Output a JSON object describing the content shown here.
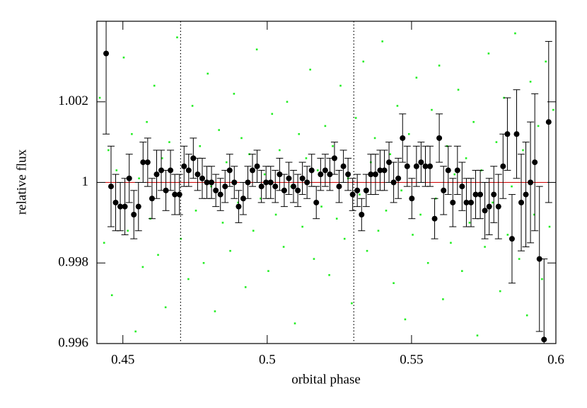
{
  "chart_data": {
    "type": "scatter",
    "xlabel": "orbital phase",
    "ylabel": "relative flux",
    "xlim": [
      0.441,
      0.6
    ],
    "ylim": [
      0.996,
      1.004
    ],
    "xticks": [
      0.45,
      0.5,
      0.55,
      0.6
    ],
    "yticks": [
      0.996,
      0.998,
      1,
      1.002
    ],
    "vlines": [
      0.47,
      0.53
    ],
    "vline_color": "#000000",
    "hline": 1,
    "hline_color": "#cc0000",
    "series": [
      {
        "color": "#22ee22",
        "x": [
          0.442,
          0.4435,
          0.445,
          0.4462,
          0.4478,
          0.449,
          0.4503,
          0.4517,
          0.4531,
          0.4544,
          0.4556,
          0.4569,
          0.4583,
          0.4595,
          0.4609,
          0.4622,
          0.4636,
          0.4648,
          0.4661,
          0.4675,
          0.4688,
          0.4701,
          0.4714,
          0.4727,
          0.4741,
          0.4753,
          0.4767,
          0.478,
          0.4794,
          0.4806,
          0.4819,
          0.4833,
          0.4846,
          0.4859,
          0.4872,
          0.4885,
          0.4899,
          0.4911,
          0.4925,
          0.4938,
          0.4952,
          0.4964,
          0.4977,
          0.4991,
          0.5004,
          0.5017,
          0.503,
          0.5043,
          0.5057,
          0.5069,
          0.5083,
          0.5096,
          0.511,
          0.5122,
          0.5135,
          0.5149,
          0.5162,
          0.5175,
          0.5188,
          0.5201,
          0.5215,
          0.5227,
          0.5241,
          0.5254,
          0.5268,
          0.528,
          0.5293,
          0.5307,
          0.532,
          0.5333,
          0.5346,
          0.5359,
          0.5373,
          0.5385,
          0.5399,
          0.5412,
          0.5426,
          0.5438,
          0.5451,
          0.5465,
          0.5478,
          0.5491,
          0.5504,
          0.5517,
          0.5531,
          0.5543,
          0.5557,
          0.557,
          0.5584,
          0.5596,
          0.5609,
          0.5623,
          0.5636,
          0.5649,
          0.5662,
          0.5675,
          0.5689,
          0.5701,
          0.5715,
          0.5728,
          0.5742,
          0.5754,
          0.5767,
          0.5781,
          0.5794,
          0.5807,
          0.582,
          0.5833,
          0.5847,
          0.5859,
          0.5873,
          0.5886,
          0.59,
          0.5912,
          0.5925,
          0.5939,
          0.5952,
          0.5965,
          0.5978,
          0.5991
        ],
        "values": [
          1.0021,
          0.9985,
          1.0008,
          0.9972,
          1.0003,
          0.9994,
          1.0031,
          0.9988,
          1.0012,
          0.9963,
          1.0001,
          0.9979,
          1.0015,
          0.9991,
          1.0024,
          0.9982,
          1.0006,
          0.9969,
          1.001,
          0.9997,
          1.0036,
          0.9986,
          1.0004,
          0.9976,
          1.0019,
          0.9993,
          1.0009,
          0.998,
          1.0027,
          0.9999,
          0.9968,
          1.0013,
          0.999,
          1.0005,
          0.9983,
          1.0022,
          0.9995,
          1.0011,
          0.9974,
          1.0007,
          0.9988,
          1.0033,
          0.9996,
          1.0002,
          0.9978,
          1.0017,
          0.9992,
          1.0008,
          0.9984,
          1.002,
          0.9999,
          0.9965,
          1.0012,
          0.9989,
          1.0006,
          1.0028,
          0.9981,
          1.0003,
          0.9994,
          1.0014,
          0.9977,
          1.0009,
          0.9991,
          1.0024,
          0.9986,
          1.0001,
          0.997,
          1.0016,
          0.9997,
          1.003,
          0.9983,
          1.0005,
          1.0011,
          0.9988,
          1.0035,
          0.9993,
          1.0007,
          0.9975,
          1.0019,
          0.9998,
          0.9966,
          1.0012,
          0.9987,
          1.0026,
          0.9992,
          1.0004,
          0.998,
          1.0018,
          0.9996,
          1.0029,
          0.9971,
          1.0009,
          0.9985,
          1.0002,
          1.0023,
          0.9978,
          1.0006,
          0.999,
          1.0015,
          0.9962,
          1.0003,
          0.9984,
          1.0032,
          0.9995,
          1.001,
          0.9973,
          1.0021,
          0.9987,
          0.9999,
          1.0037,
          0.9981,
          1.0008,
          0.9967,
          1.0025,
          0.9992,
          1.0014,
          0.9976,
          1.003,
          0.9989,
          1.0018
        ]
      },
      {
        "color": "#000000",
        "x": [
          0.4442,
          0.4459,
          0.4475,
          0.4491,
          0.4507,
          0.4522,
          0.4538,
          0.4554,
          0.457,
          0.4586,
          0.4601,
          0.4617,
          0.4633,
          0.4649,
          0.4665,
          0.468,
          0.4696,
          0.4712,
          0.4728,
          0.4744,
          0.4759,
          0.4775,
          0.4791,
          0.4807,
          0.4822,
          0.4838,
          0.4854,
          0.487,
          0.4886,
          0.4901,
          0.4917,
          0.4933,
          0.4949,
          0.4965,
          0.498,
          0.4996,
          0.5012,
          0.5028,
          0.5043,
          0.5059,
          0.5075,
          0.5091,
          0.5106,
          0.5122,
          0.5138,
          0.5154,
          0.517,
          0.5185,
          0.5201,
          0.5217,
          0.5233,
          0.5249,
          0.5264,
          0.528,
          0.5296,
          0.5312,
          0.5327,
          0.5343,
          0.5359,
          0.5375,
          0.5391,
          0.5406,
          0.5422,
          0.5438,
          0.5454,
          0.5469,
          0.5485,
          0.5501,
          0.5517,
          0.5533,
          0.5548,
          0.5564,
          0.558,
          0.5596,
          0.5611,
          0.5627,
          0.5643,
          0.5659,
          0.5675,
          0.569,
          0.5706,
          0.5722,
          0.5738,
          0.5754,
          0.5769,
          0.5785,
          0.5801,
          0.5817,
          0.5832,
          0.5848,
          0.5864,
          0.588,
          0.5896,
          0.5912,
          0.5927,
          0.5943,
          0.5959,
          0.5975
        ],
        "values": [
          1.0032,
          0.9999,
          0.9995,
          0.9994,
          0.9994,
          1.0001,
          0.9992,
          0.9994,
          1.0005,
          1.0005,
          0.9996,
          1.0002,
          1.0003,
          0.9998,
          1.0003,
          0.9997,
          0.9997,
          1.0004,
          1.0003,
          1.0006,
          1.0002,
          1.0001,
          1.0,
          1.0,
          0.9998,
          0.9997,
          0.9999,
          1.0003,
          1.0,
          0.9994,
          0.9996,
          1.0,
          1.0003,
          1.0004,
          0.9999,
          1.0,
          1.0,
          0.9999,
          1.0002,
          0.9998,
          1.0001,
          0.9999,
          0.9998,
          1.0001,
          1.0,
          1.0003,
          0.9995,
          1.0002,
          1.0003,
          1.0002,
          1.0006,
          0.9999,
          1.0004,
          1.0002,
          0.9997,
          0.9998,
          0.9992,
          0.9998,
          1.0002,
          1.0002,
          1.0003,
          1.0003,
          1.0005,
          1.0,
          1.0001,
          1.0011,
          1.0004,
          0.9996,
          1.0004,
          1.0005,
          1.0004,
          1.0004,
          0.9991,
          1.0011,
          0.9998,
          1.0003,
          0.9995,
          1.0003,
          0.9999,
          0.9995,
          0.9995,
          0.9997,
          0.9997,
          0.9993,
          0.9994,
          0.9997,
          0.9994,
          1.0004,
          1.0012,
          0.9986,
          1.0012,
          0.9995,
          0.9997,
          1.0,
          1.0005,
          0.9981,
          0.9961,
          1.0015
        ],
        "errors": [
          0.002,
          0.001,
          0.0007,
          0.0006,
          0.0007,
          0.0006,
          0.0006,
          0.0006,
          0.0005,
          0.0006,
          0.0005,
          0.0006,
          0.0005,
          0.0005,
          0.0005,
          0.0005,
          0.0005,
          0.0005,
          0.0004,
          0.0005,
          0.0004,
          0.0005,
          0.0004,
          0.0004,
          0.0004,
          0.0004,
          0.0004,
          0.0004,
          0.0004,
          0.0004,
          0.0004,
          0.0004,
          0.0004,
          0.0004,
          0.0004,
          0.0004,
          0.0004,
          0.0004,
          0.0004,
          0.0004,
          0.0004,
          0.0004,
          0.0004,
          0.0004,
          0.0004,
          0.0004,
          0.0004,
          0.0004,
          0.0004,
          0.0004,
          0.0004,
          0.0004,
          0.0004,
          0.0004,
          0.0004,
          0.0004,
          0.0004,
          0.0004,
          0.0005,
          0.0005,
          0.0005,
          0.0005,
          0.0005,
          0.0005,
          0.0005,
          0.0006,
          0.0005,
          0.0005,
          0.0005,
          0.0005,
          0.0005,
          0.0005,
          0.0005,
          0.0006,
          0.0006,
          0.0006,
          0.0006,
          0.0006,
          0.0006,
          0.0006,
          0.0006,
          0.0006,
          0.0006,
          0.0007,
          0.0007,
          0.0007,
          0.0008,
          0.0008,
          0.0009,
          0.0011,
          0.0011,
          0.0012,
          0.0013,
          0.0015,
          0.0017,
          0.0018,
          0.002,
          0.002
        ]
      }
    ]
  }
}
